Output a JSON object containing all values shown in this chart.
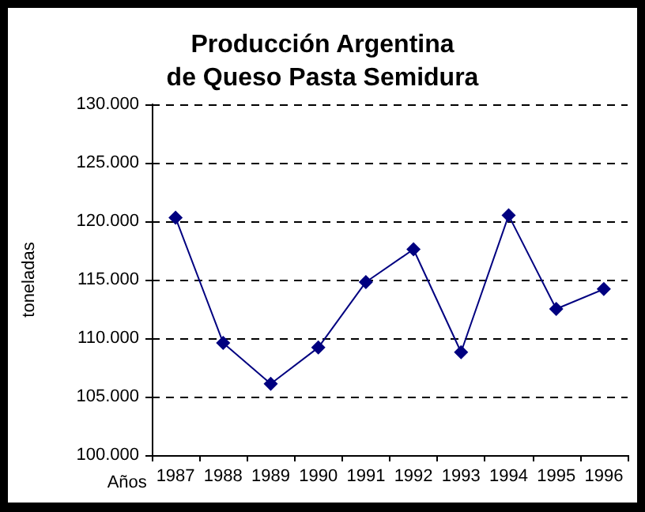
{
  "chart_data": {
    "type": "line",
    "title": "Producción Argentina\nde Queso Pasta Semidura",
    "xlabel": "Años",
    "ylabel": "toneladas",
    "categories": [
      "1987",
      "1988",
      "1989",
      "1990",
      "1991",
      "1992",
      "1993",
      "1994",
      "1995",
      "1996"
    ],
    "series": [
      {
        "color": "#000080",
        "values": [
          120300,
          109600,
          106100,
          109200,
          114800,
          117600,
          108800,
          120500,
          112500,
          114200
        ]
      }
    ],
    "ylim": [
      100000,
      130000
    ],
    "yticks": [
      {
        "value": 100000,
        "label": "100.000"
      },
      {
        "value": 105000,
        "label": "105.000"
      },
      {
        "value": 110000,
        "label": "110.000"
      },
      {
        "value": 115000,
        "label": "115.000"
      },
      {
        "value": 120000,
        "label": "120.000"
      },
      {
        "value": 125000,
        "label": "125.000"
      },
      {
        "value": 130000,
        "label": "130.000"
      }
    ],
    "grid": "y",
    "marker": "diamond",
    "line_style": "solid"
  }
}
